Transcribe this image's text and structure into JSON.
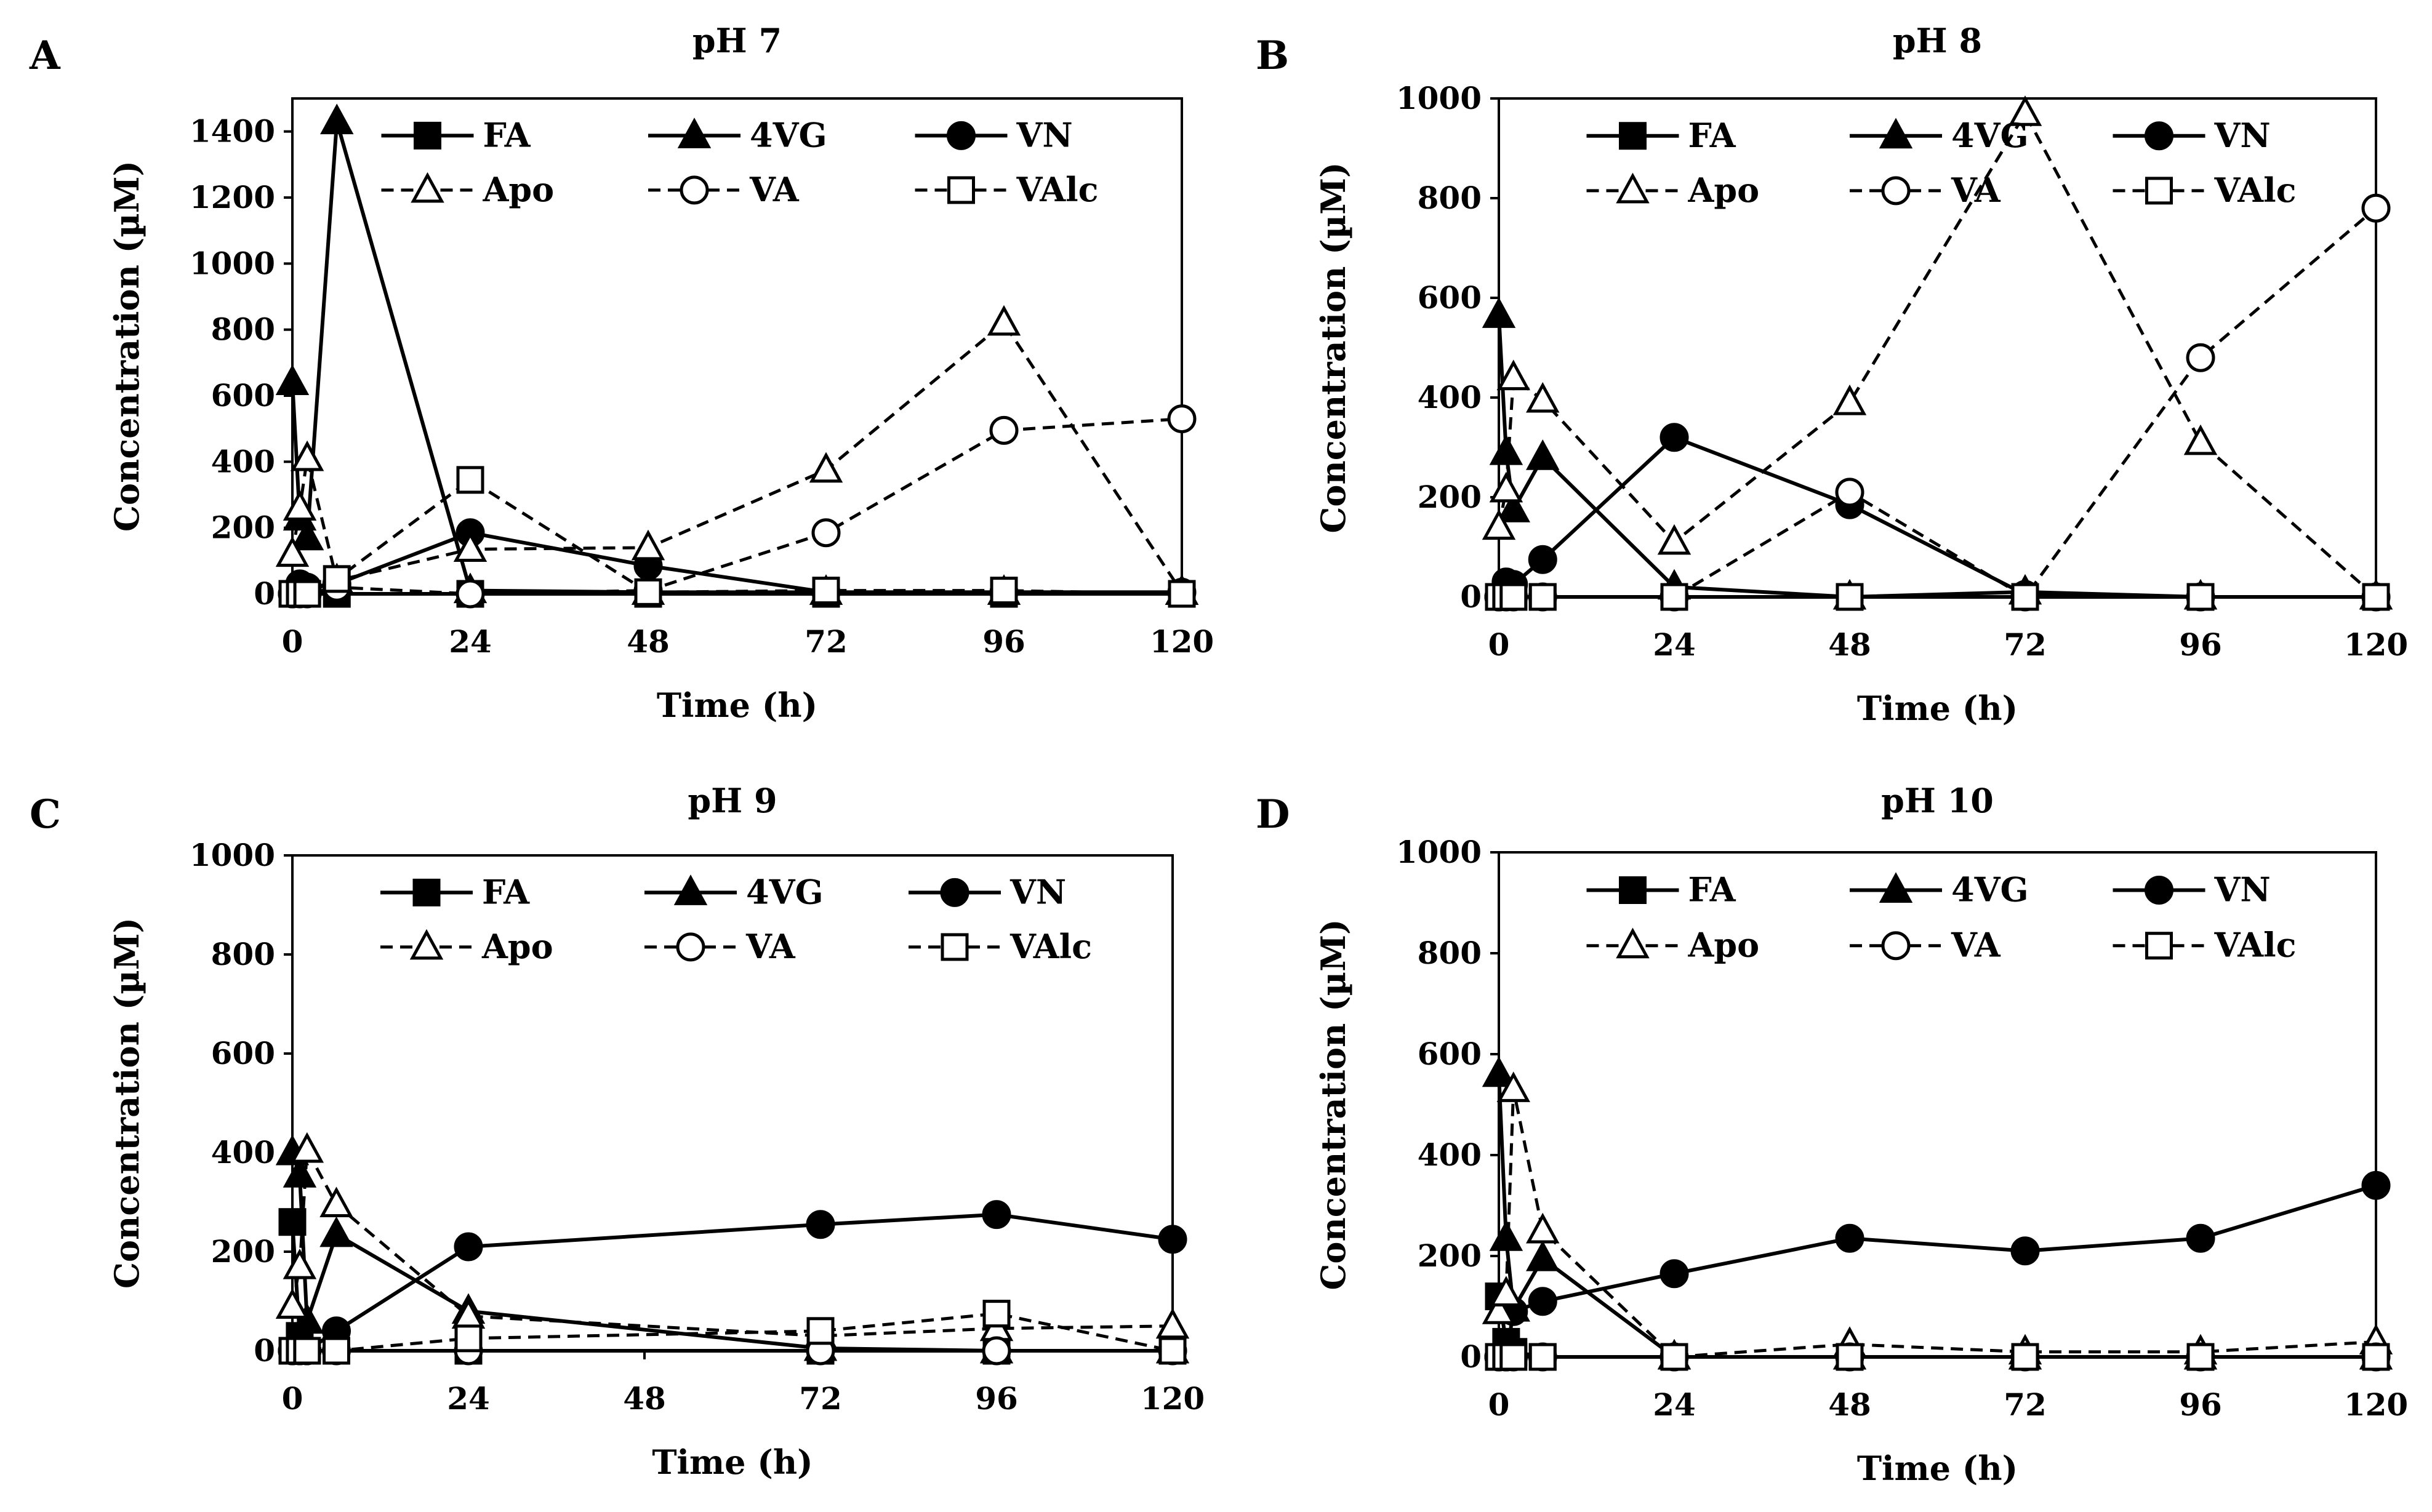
{
  "figure": {
    "series_styles": [
      {
        "name": "FA",
        "marker": "square",
        "filled": true,
        "dashed": false
      },
      {
        "name": "4VG",
        "marker": "triangle",
        "filled": true,
        "dashed": false
      },
      {
        "name": "VN",
        "marker": "circle",
        "filled": true,
        "dashed": false
      },
      {
        "name": "Apo",
        "marker": "triangle",
        "filled": false,
        "dashed": true
      },
      {
        "name": "VA",
        "marker": "circle",
        "filled": false,
        "dashed": true
      },
      {
        "name": "VAlc",
        "marker": "square",
        "filled": false,
        "dashed": true
      }
    ],
    "colors": {
      "line": "#000000",
      "background": "#ffffff"
    }
  },
  "chart_data": [
    {
      "type": "line",
      "panel": "A",
      "title": "pH 7",
      "xlabel": "Time (h)",
      "ylabel": "Concentration (µM)",
      "xlim": [
        0,
        120
      ],
      "ylim": [
        0,
        1500
      ],
      "xticks": [
        0,
        24,
        48,
        72,
        96,
        120
      ],
      "yticks": [
        0,
        200,
        400,
        600,
        800,
        1000,
        1200,
        1400
      ],
      "legend_position": "top",
      "series": [
        {
          "name": "FA",
          "x": [
            0,
            1,
            2,
            6,
            24,
            48,
            72,
            96,
            120
          ],
          "values": [
            0,
            0,
            0,
            0,
            0,
            0,
            0,
            0,
            0
          ]
        },
        {
          "name": "4VG",
          "x": [
            0,
            1,
            2,
            6,
            24,
            48,
            72,
            96,
            120
          ],
          "values": [
            640,
            230,
            170,
            1430,
            10,
            5,
            5,
            5,
            5
          ]
        },
        {
          "name": "VN",
          "x": [
            0,
            1,
            2,
            6,
            24,
            48,
            72,
            96,
            120
          ],
          "values": [
            0,
            30,
            20,
            30,
            185,
            85,
            5,
            5,
            5
          ]
        },
        {
          "name": "Apo",
          "x": [
            0,
            1,
            2,
            6,
            24,
            48,
            72,
            96,
            120
          ],
          "values": [
            120,
            260,
            410,
            40,
            135,
            140,
            375,
            820,
            5
          ]
        },
        {
          "name": "VA",
          "x": [
            0,
            1,
            2,
            6,
            24,
            48,
            72,
            96,
            120
          ],
          "values": [
            0,
            0,
            0,
            20,
            0,
            10,
            185,
            495,
            530
          ]
        },
        {
          "name": "VAlc",
          "x": [
            0,
            1,
            2,
            6,
            24,
            48,
            72,
            96,
            120
          ],
          "values": [
            0,
            0,
            0,
            45,
            345,
            5,
            10,
            10,
            0
          ]
        }
      ]
    },
    {
      "type": "line",
      "panel": "B",
      "title": "pH 8",
      "xlabel": "Time (h)",
      "ylabel": "Concentration (µM)",
      "xlim": [
        0,
        120
      ],
      "ylim": [
        0,
        1000
      ],
      "xticks": [
        0,
        24,
        48,
        72,
        96,
        120
      ],
      "yticks": [
        0,
        200,
        400,
        600,
        800,
        1000
      ],
      "legend_position": "top",
      "series": [
        {
          "name": "FA",
          "x": [
            0,
            1,
            2,
            6,
            24,
            48,
            72,
            96,
            120
          ],
          "values": [
            0,
            0,
            0,
            0,
            0,
            0,
            0,
            0,
            0
          ]
        },
        {
          "name": "4VG",
          "x": [
            0,
            1,
            2,
            6,
            24,
            48,
            72,
            96,
            120
          ],
          "values": [
            565,
            290,
            175,
            280,
            20,
            0,
            10,
            0,
            0
          ]
        },
        {
          "name": "VN",
          "x": [
            0,
            1,
            2,
            6,
            24,
            48,
            72,
            96,
            120
          ],
          "values": [
            0,
            30,
            25,
            75,
            320,
            185,
            5,
            0,
            0
          ]
        },
        {
          "name": "Apo",
          "x": [
            0,
            1,
            2,
            6,
            24,
            48,
            72,
            96,
            120
          ],
          "values": [
            140,
            215,
            440,
            395,
            110,
            390,
            970,
            310,
            0
          ]
        },
        {
          "name": "VA",
          "x": [
            0,
            1,
            2,
            6,
            24,
            48,
            72,
            96,
            120
          ],
          "values": [
            0,
            0,
            0,
            0,
            0,
            210,
            0,
            480,
            780
          ]
        },
        {
          "name": "VAlc",
          "x": [
            0,
            1,
            2,
            6,
            24,
            48,
            72,
            96,
            120
          ],
          "values": [
            0,
            0,
            0,
            0,
            0,
            0,
            0,
            0,
            0
          ]
        }
      ]
    },
    {
      "type": "line",
      "panel": "C",
      "title": "pH 9",
      "xlabel": "Time (h)",
      "ylabel": "Concentration (µM)",
      "xlim": [
        0,
        120
      ],
      "ylim": [
        0,
        1000
      ],
      "xticks": [
        0,
        24,
        48,
        72,
        96,
        120
      ],
      "yticks": [
        0,
        200,
        400,
        600,
        800,
        1000
      ],
      "legend_position": "top",
      "series": [
        {
          "name": "FA",
          "x": [
            0,
            1,
            2,
            6,
            24,
            72,
            96,
            120
          ],
          "values": [
            260,
            30,
            0,
            0,
            0,
            0,
            0,
            0
          ]
        },
        {
          "name": "4VG",
          "x": [
            0,
            1,
            2,
            6,
            24,
            72,
            96,
            120
          ],
          "values": [
            400,
            355,
            60,
            235,
            80,
            5,
            0,
            0
          ]
        },
        {
          "name": "VN",
          "x": [
            0,
            1,
            2,
            6,
            24,
            72,
            96,
            120
          ],
          "values": [
            0,
            0,
            0,
            40,
            210,
            255,
            275,
            225
          ]
        },
        {
          "name": "Apo",
          "x": [
            0,
            1,
            2,
            6,
            24,
            72,
            96,
            120
          ],
          "values": [
            90,
            170,
            405,
            295,
            70,
            30,
            45,
            50
          ]
        },
        {
          "name": "VA",
          "x": [
            0,
            1,
            2,
            6,
            24,
            72,
            96,
            120
          ],
          "values": [
            0,
            0,
            0,
            0,
            0,
            0,
            0,
            0
          ]
        },
        {
          "name": "VAlc",
          "x": [
            0,
            1,
            2,
            6,
            24,
            72,
            96,
            120
          ],
          "values": [
            0,
            0,
            0,
            0,
            25,
            40,
            75,
            0
          ]
        }
      ]
    },
    {
      "type": "line",
      "panel": "D",
      "title": "pH 10",
      "xlabel": "Time (h)",
      "ylabel": "Concentration (µM)",
      "xlim": [
        0,
        120
      ],
      "ylim": [
        0,
        1000
      ],
      "xticks": [
        0,
        24,
        48,
        72,
        96,
        120
      ],
      "yticks": [
        0,
        200,
        400,
        600,
        800,
        1000
      ],
      "legend_position": "top",
      "series": [
        {
          "name": "FA",
          "x": [
            0,
            1,
            2,
            6,
            24,
            48,
            72,
            96,
            120
          ],
          "values": [
            120,
            30,
            10,
            0,
            0,
            0,
            0,
            0,
            0
          ]
        },
        {
          "name": "4VG",
          "x": [
            0,
            1,
            2,
            6,
            24,
            48,
            72,
            96,
            120
          ],
          "values": [
            560,
            235,
            95,
            195,
            0,
            0,
            0,
            0,
            0
          ]
        },
        {
          "name": "VN",
          "x": [
            0,
            1,
            2,
            6,
            24,
            48,
            72,
            96,
            120
          ],
          "values": [
            0,
            0,
            90,
            110,
            165,
            235,
            210,
            235,
            340
          ]
        },
        {
          "name": "Apo",
          "x": [
            0,
            1,
            2,
            6,
            24,
            48,
            72,
            96,
            120
          ],
          "values": [
            90,
            125,
            530,
            250,
            0,
            25,
            10,
            10,
            30
          ]
        },
        {
          "name": "VA",
          "x": [
            0,
            1,
            2,
            6,
            24,
            48,
            72,
            96,
            120
          ],
          "values": [
            0,
            0,
            0,
            0,
            0,
            0,
            0,
            0,
            0
          ]
        },
        {
          "name": "VAlc",
          "x": [
            0,
            1,
            2,
            6,
            24,
            48,
            72,
            96,
            120
          ],
          "values": [
            0,
            0,
            0,
            0,
            0,
            0,
            0,
            0,
            0
          ]
        }
      ]
    }
  ]
}
